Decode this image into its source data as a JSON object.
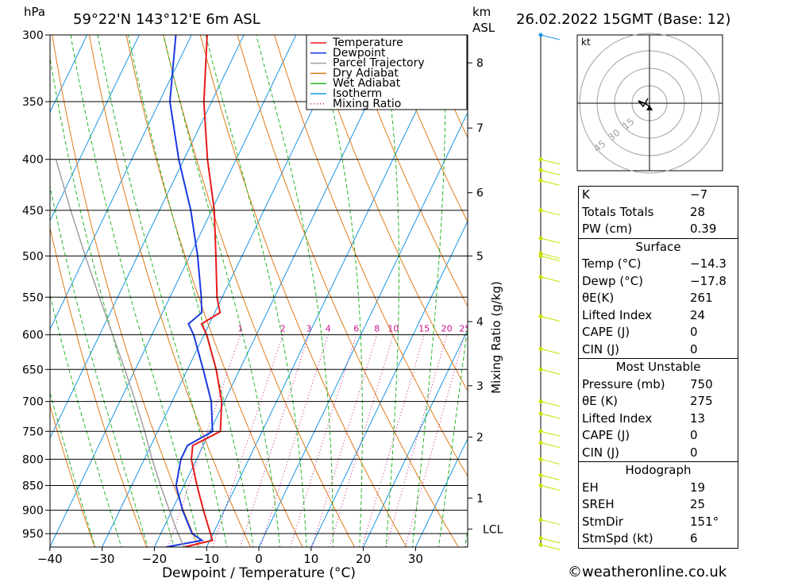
{
  "header": {
    "location": "59°22'N  143°12'E  6m  ASL",
    "datetime": "26.02.2022  15GMT  (Base: 12)",
    "left_unit": "hPa",
    "right_unit_top": "km",
    "right_unit_bottom": "ASL"
  },
  "axis": {
    "xlabel": "Dewpoint / Temperature (°C)",
    "right_label": "Mixing Ratio (g/kg)",
    "pressure_ticks": [
      300,
      350,
      400,
      450,
      500,
      550,
      600,
      650,
      700,
      750,
      800,
      850,
      900,
      950
    ],
    "temp_ticks": [
      -40,
      -30,
      -20,
      -10,
      0,
      10,
      20,
      30
    ],
    "temp_tick_labels": [
      "−40",
      "−30",
      "−20",
      "−10",
      "0",
      "10",
      "20",
      "30"
    ],
    "km_ticks": [
      {
        "label": "8",
        "p": 320
      },
      {
        "label": "7",
        "p": 372
      },
      {
        "label": "6",
        "p": 432
      },
      {
        "label": "5",
        "p": 500
      },
      {
        "label": "4",
        "p": 582
      },
      {
        "label": "3",
        "p": 675
      },
      {
        "label": "2",
        "p": 760
      },
      {
        "label": "1",
        "p": 875
      }
    ],
    "lcl_label": "LCL",
    "lcl_p": 940,
    "mixing_ratio_labels": [
      "1",
      "2",
      "3",
      "4",
      "6",
      "8",
      "10",
      "15",
      "20",
      "25"
    ]
  },
  "legend": [
    {
      "label": "Temperature",
      "color": "#e8191a",
      "style": "solid"
    },
    {
      "label": "Dewpoint",
      "color": "#1a39e0",
      "style": "solid"
    },
    {
      "label": "Parcel Trajectory",
      "color": "#a0a0a0",
      "style": "solid"
    },
    {
      "label": "Dry Adiabat",
      "color": "#e07b18",
      "style": "solid"
    },
    {
      "label": "Wet Adiabat",
      "color": "#26b526",
      "style": "solid"
    },
    {
      "label": "Isotherm",
      "color": "#1897e6",
      "style": "solid"
    },
    {
      "label": "Mixing Ratio",
      "color": "#c8128c",
      "style": "dotted"
    }
  ],
  "chart_data": {
    "type": "line",
    "title": "Skew-T log-P sounding",
    "xlabel": "Dewpoint / Temperature (°C)",
    "ylabel": "hPa",
    "xlim": [
      -40,
      40
    ],
    "ylim": [
      980,
      300
    ],
    "y_scale": "log",
    "series": [
      {
        "name": "Temperature",
        "color": "#e8191a",
        "points": [
          [
            980,
            -14.3
          ],
          [
            965,
            -9.5
          ],
          [
            950,
            -10.5
          ],
          [
            900,
            -14
          ],
          [
            850,
            -17.5
          ],
          [
            800,
            -21
          ],
          [
            775,
            -22
          ],
          [
            750,
            -18
          ],
          [
            700,
            -20.5
          ],
          [
            650,
            -24.5
          ],
          [
            600,
            -29.5
          ],
          [
            585,
            -31.5
          ],
          [
            570,
            -29
          ],
          [
            550,
            -31
          ],
          [
            500,
            -35
          ],
          [
            450,
            -39.5
          ],
          [
            400,
            -45.5
          ],
          [
            350,
            -51.5
          ],
          [
            300,
            -57
          ]
        ]
      },
      {
        "name": "Dewpoint",
        "color": "#1a39e0",
        "points": [
          [
            980,
            -17.8
          ],
          [
            965,
            -11.5
          ],
          [
            950,
            -14
          ],
          [
            900,
            -18
          ],
          [
            850,
            -21.5
          ],
          [
            800,
            -23
          ],
          [
            775,
            -23
          ],
          [
            750,
            -19.5
          ],
          [
            700,
            -22.5
          ],
          [
            650,
            -27
          ],
          [
            600,
            -32
          ],
          [
            585,
            -34
          ],
          [
            570,
            -32.5
          ],
          [
            550,
            -34
          ],
          [
            500,
            -38.5
          ],
          [
            450,
            -44
          ],
          [
            400,
            -51
          ],
          [
            350,
            -58
          ],
          [
            300,
            -63
          ]
        ]
      },
      {
        "name": "Parcel Trajectory",
        "color": "#a0a0a0",
        "points": [
          [
            980,
            -14.3
          ],
          [
            940,
            -17.5
          ],
          [
            900,
            -20.5
          ],
          [
            850,
            -24.5
          ],
          [
            800,
            -28.5
          ],
          [
            750,
            -32.5
          ],
          [
            700,
            -37
          ],
          [
            650,
            -42
          ],
          [
            600,
            -47.5
          ],
          [
            550,
            -53.5
          ],
          [
            500,
            -60
          ],
          [
            450,
            -67
          ],
          [
            400,
            -74.5
          ]
        ]
      }
    ],
    "grid": true
  },
  "wind_profile": {
    "ticks_p": [
      300,
      400,
      410,
      420,
      450,
      480,
      497,
      500,
      525,
      575,
      620,
      650,
      700,
      720,
      750,
      770,
      800,
      830,
      850,
      920,
      960,
      975
    ]
  },
  "hodograph": {
    "unit": "kt",
    "ring_labels": [
      "15",
      "30",
      "45"
    ]
  },
  "indices": {
    "basic": [
      {
        "label": "K",
        "value": "−7"
      },
      {
        "label": "Totals Totals",
        "value": "28"
      },
      {
        "label": "PW (cm)",
        "value": "0.39"
      }
    ],
    "surface_title": "Surface",
    "surface": [
      {
        "label": "Temp (°C)",
        "value": "−14.3"
      },
      {
        "label": "Dewp (°C)",
        "value": "−17.8"
      },
      {
        "label": "θE(K)",
        "value": "261"
      },
      {
        "label": "Lifted Index",
        "value": "24"
      },
      {
        "label": "CAPE (J)",
        "value": "0"
      },
      {
        "label": "CIN (J)",
        "value": "0"
      }
    ],
    "mu_title": "Most Unstable",
    "most_unstable": [
      {
        "label": "Pressure (mb)",
        "value": "750"
      },
      {
        "label": "θE (K)",
        "value": "275"
      },
      {
        "label": "Lifted Index",
        "value": "13"
      },
      {
        "label": "CAPE (J)",
        "value": "0"
      },
      {
        "label": "CIN (J)",
        "value": "0"
      }
    ],
    "hodo_title": "Hodograph",
    "hodo": [
      {
        "label": "EH",
        "value": "19"
      },
      {
        "label": "SREH",
        "value": "25"
      },
      {
        "label": "StmDir",
        "value": "151°"
      },
      {
        "label": "StmSpd (kt)",
        "value": "6"
      }
    ]
  },
  "footer": {
    "credit": "©weatheronline.co.uk"
  }
}
